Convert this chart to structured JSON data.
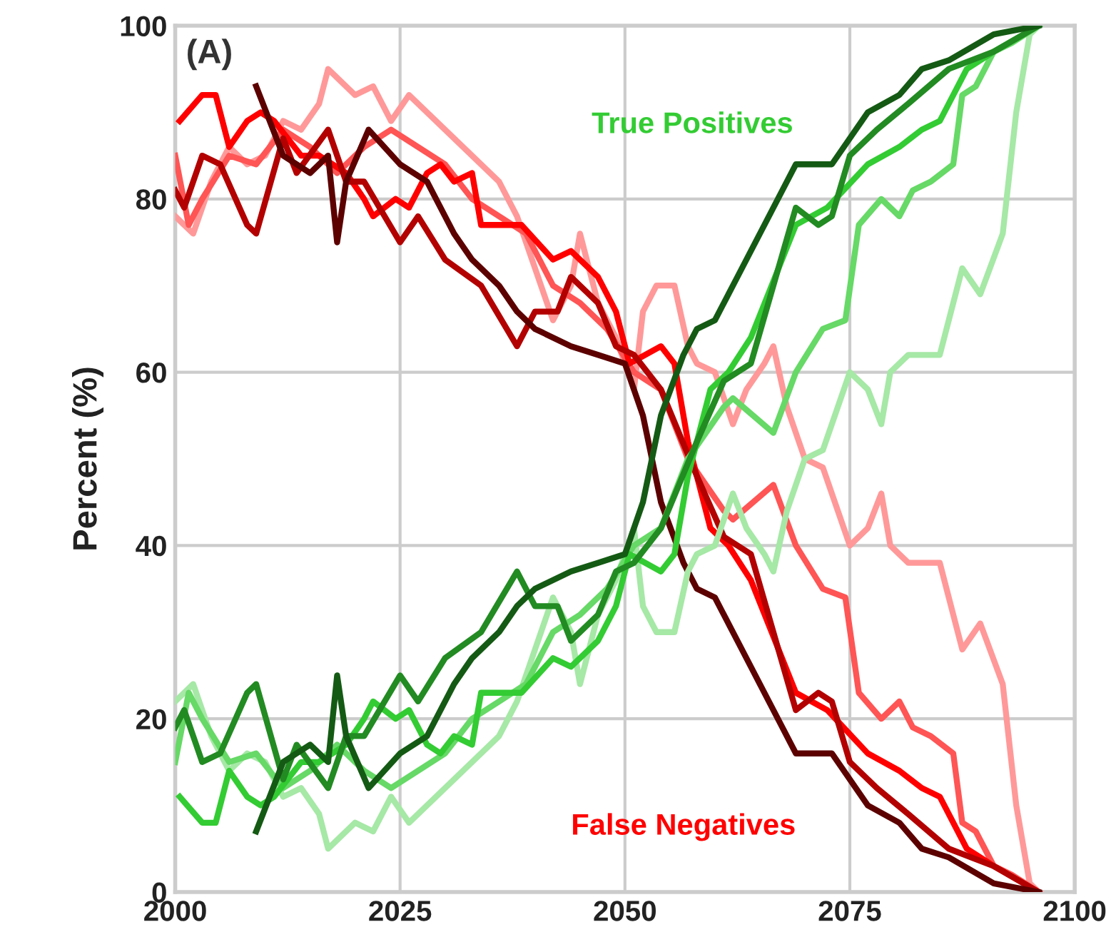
{
  "chart_data": {
    "type": "line",
    "ylabel": "Percent (%)",
    "xlim": [
      2000,
      2100
    ],
    "xticks": [
      2000,
      2025,
      2050,
      2075,
      2100
    ],
    "ylim": [
      0,
      100
    ],
    "yticks": [
      0,
      20,
      40,
      60,
      80,
      100
    ],
    "grid": true,
    "annotations": [
      "(A)",
      "True Positives",
      "False Negatives"
    ],
    "series": [
      {
        "color": "#ff9999",
        "x": [
          2000,
          2002,
          2004,
          2006,
          2008,
          2010,
          2012,
          2014,
          2016,
          2017,
          2020,
          2022,
          2024,
          2026,
          2028,
          2030,
          2032,
          2034,
          2036,
          2038,
          2040,
          2042,
          2044,
          2045,
          2047,
          2049,
          2051,
          2052,
          2053.5,
          2055.5,
          2057,
          2058,
          2060,
          2062,
          2063.5,
          2065.5,
          2066.5,
          2068,
          2070,
          2072,
          2075,
          2077,
          2078.5,
          2079.5,
          2081.5,
          2085,
          2087.5,
          2089.5,
          2092,
          2093.5,
          2095,
          2096
        ],
        "values": [
          78,
          76,
          82,
          86,
          84,
          85,
          89,
          88,
          91,
          95,
          92,
          93,
          89,
          92,
          90,
          88,
          86,
          84,
          82,
          78,
          72,
          66,
          70,
          76,
          68,
          64,
          58,
          67,
          70,
          70,
          63,
          61,
          60,
          54,
          58,
          61,
          63,
          56,
          50,
          49,
          40,
          42,
          46,
          40,
          38,
          38,
          28,
          31,
          24,
          10,
          1,
          0
        ]
      },
      {
        "color": "#ff5555",
        "x": [
          2000,
          2001.5,
          2003,
          2006,
          2009,
          2012,
          2015,
          2018,
          2021,
          2024,
          2027,
          2030,
          2033,
          2036,
          2039,
          2042,
          2045,
          2048,
          2051,
          2054,
          2057,
          2061,
          2062,
          2066.5,
          2069,
          2072,
          2074.5,
          2076,
          2078.5,
          2080.5,
          2082,
          2084,
          2086.5,
          2087.5,
          2089,
          2091,
          2093,
          2096
        ],
        "values": [
          85,
          77,
          80,
          85,
          84,
          88,
          86,
          83,
          86,
          88,
          86,
          84,
          80,
          78,
          76,
          70,
          68,
          65,
          60,
          58,
          50,
          44,
          43,
          47,
          40,
          35,
          34,
          23,
          20,
          22,
          19,
          18,
          16,
          8,
          7,
          3,
          2,
          0
        ]
      },
      {
        "color": "#ff0000",
        "x": [
          2000.5,
          2003,
          2004.5,
          2006,
          2008,
          2009.5,
          2011,
          2014,
          2016,
          2019,
          2021,
          2022,
          2024.5,
          2026,
          2028,
          2029.5,
          2031,
          2033,
          2034,
          2036,
          2038.5,
          2042,
          2044,
          2047,
          2049,
          2050.5,
          2054,
          2055.5,
          2057,
          2059.5,
          2061.5,
          2064,
          2069,
          2072.5,
          2077,
          2080.5,
          2083,
          2085,
          2088,
          2091,
          2096
        ],
        "values": [
          89,
          92,
          92,
          86,
          89,
          90,
          89,
          85,
          85,
          83,
          80,
          78,
          80,
          79,
          83,
          84,
          82,
          83,
          77,
          77,
          77,
          73,
          74,
          71,
          67,
          61,
          63,
          61,
          52,
          42,
          40,
          36,
          23,
          21,
          16,
          14,
          12,
          11,
          5,
          3,
          0
        ]
      },
      {
        "color": "#b30000",
        "x": [
          2000,
          2001,
          2003,
          2005,
          2008,
          2009,
          2012,
          2013.5,
          2017,
          2019,
          2021,
          2025,
          2027,
          2030,
          2034,
          2038,
          2040,
          2042.5,
          2044,
          2047,
          2049,
          2051,
          2054,
          2056,
          2058,
          2061,
          2064,
          2069,
          2071.5,
          2073,
          2075,
          2078,
          2081.5,
          2086,
          2091,
          2096
        ],
        "values": [
          81,
          79,
          85,
          84,
          77,
          76,
          87,
          83,
          88,
          82,
          82,
          75,
          78,
          73,
          70,
          63,
          67,
          67,
          71,
          68,
          63,
          62,
          58,
          53,
          48,
          41,
          39,
          21,
          23,
          22,
          15,
          12,
          9,
          5,
          3,
          0
        ]
      },
      {
        "color": "#5c0000",
        "x": [
          2009,
          2012,
          2015,
          2017,
          2018,
          2019,
          2021.5,
          2025,
          2028,
          2031,
          2033,
          2036,
          2038,
          2040,
          2044,
          2047,
          2050,
          2052,
          2054,
          2056.5,
          2058,
          2060,
          2062.5,
          2066,
          2069,
          2073,
          2077,
          2080.5,
          2083,
          2086,
          2091,
          2096
        ],
        "values": [
          93,
          85,
          83,
          85,
          75,
          82,
          88,
          84,
          82,
          76,
          73,
          70,
          67,
          65,
          63,
          62,
          61,
          55,
          45,
          38,
          35,
          34,
          29,
          22,
          16,
          16,
          10,
          8,
          5,
          4,
          1,
          0
        ]
      },
      {
        "color": "#a6e8a6",
        "x": [
          2000,
          2002,
          2004,
          2006,
          2008,
          2010,
          2012,
          2014,
          2016,
          2017,
          2020,
          2022,
          2024,
          2026,
          2028,
          2030,
          2032,
          2034,
          2036,
          2038,
          2040,
          2042,
          2044,
          2045,
          2047,
          2049,
          2051,
          2052,
          2053.5,
          2055.5,
          2057,
          2058,
          2060,
          2062,
          2063.5,
          2065.5,
          2066.5,
          2068,
          2070,
          2072,
          2075,
          2077,
          2078.5,
          2079.5,
          2081.5,
          2085,
          2087.5,
          2089.5,
          2092,
          2093.5,
          2095,
          2096
        ],
        "values": [
          22,
          24,
          18,
          14,
          16,
          15,
          11,
          12,
          9,
          5,
          8,
          7,
          11,
          8,
          10,
          12,
          14,
          16,
          18,
          22,
          28,
          34,
          30,
          24,
          32,
          36,
          42,
          33,
          30,
          30,
          37,
          39,
          40,
          46,
          42,
          39,
          37,
          44,
          50,
          51,
          60,
          58,
          54,
          60,
          62,
          62,
          72,
          69,
          76,
          90,
          99,
          100
        ]
      },
      {
        "color": "#66d966",
        "x": [
          2000,
          2001.5,
          2003,
          2006,
          2009,
          2012,
          2015,
          2018,
          2021,
          2024,
          2027,
          2030,
          2033,
          2036,
          2039,
          2042,
          2045,
          2048,
          2051,
          2054,
          2057,
          2061,
          2062,
          2066.5,
          2069,
          2072,
          2074.5,
          2076,
          2078.5,
          2080.5,
          2082,
          2084,
          2086.5,
          2087.5,
          2089,
          2091,
          2093,
          2096
        ],
        "values": [
          15,
          23,
          20,
          15,
          16,
          12,
          14,
          17,
          14,
          12,
          14,
          16,
          20,
          22,
          24,
          30,
          32,
          35,
          40,
          42,
          50,
          56,
          57,
          53,
          60,
          65,
          66,
          77,
          80,
          78,
          81,
          82,
          84,
          92,
          93,
          97,
          98,
          100
        ]
      },
      {
        "color": "#33cc33",
        "x": [
          2000.5,
          2003,
          2004.5,
          2006,
          2008,
          2009.5,
          2011,
          2014,
          2016,
          2019,
          2021,
          2022,
          2024.5,
          2026,
          2028,
          2029.5,
          2031,
          2033,
          2034,
          2036,
          2038.5,
          2042,
          2044,
          2047,
          2049,
          2050.5,
          2054,
          2055.5,
          2057,
          2059.5,
          2061.5,
          2064,
          2069,
          2072.5,
          2077,
          2080.5,
          2083,
          2085,
          2088,
          2091,
          2096
        ],
        "values": [
          11,
          8,
          8,
          14,
          11,
          10,
          11,
          15,
          15,
          17,
          20,
          22,
          20,
          21,
          17,
          16,
          18,
          17,
          23,
          23,
          23,
          27,
          26,
          29,
          33,
          39,
          37,
          39,
          48,
          58,
          60,
          64,
          77,
          79,
          84,
          86,
          88,
          89,
          95,
          97,
          100
        ]
      },
      {
        "color": "#228b22",
        "x": [
          2000,
          2001,
          2003,
          2005,
          2008,
          2009,
          2012,
          2013.5,
          2017,
          2019,
          2021,
          2025,
          2027,
          2030,
          2034,
          2038,
          2040,
          2042.5,
          2044,
          2047,
          2049,
          2051,
          2054,
          2056,
          2058,
          2061,
          2064,
          2069,
          2071.5,
          2073,
          2075,
          2078,
          2081.5,
          2086,
          2091,
          2096
        ],
        "values": [
          19,
          21,
          15,
          16,
          23,
          24,
          13,
          17,
          12,
          18,
          18,
          25,
          22,
          27,
          30,
          37,
          33,
          33,
          29,
          32,
          37,
          38,
          42,
          47,
          52,
          59,
          61,
          79,
          77,
          78,
          85,
          88,
          91,
          95,
          97,
          100
        ]
      },
      {
        "color": "#145a14",
        "x": [
          2009,
          2012,
          2015,
          2017,
          2018,
          2019,
          2021.5,
          2025,
          2028,
          2031,
          2033,
          2036,
          2038,
          2040,
          2044,
          2047,
          2050,
          2052,
          2054,
          2056.5,
          2058,
          2060,
          2062.5,
          2066,
          2069,
          2073,
          2077,
          2080.5,
          2083,
          2086,
          2091,
          2096
        ],
        "values": [
          7,
          15,
          17,
          15,
          25,
          18,
          12,
          16,
          18,
          24,
          27,
          30,
          33,
          35,
          37,
          38,
          39,
          45,
          55,
          62,
          65,
          66,
          71,
          78,
          84,
          84,
          90,
          92,
          95,
          96,
          99,
          100
        ]
      }
    ]
  }
}
